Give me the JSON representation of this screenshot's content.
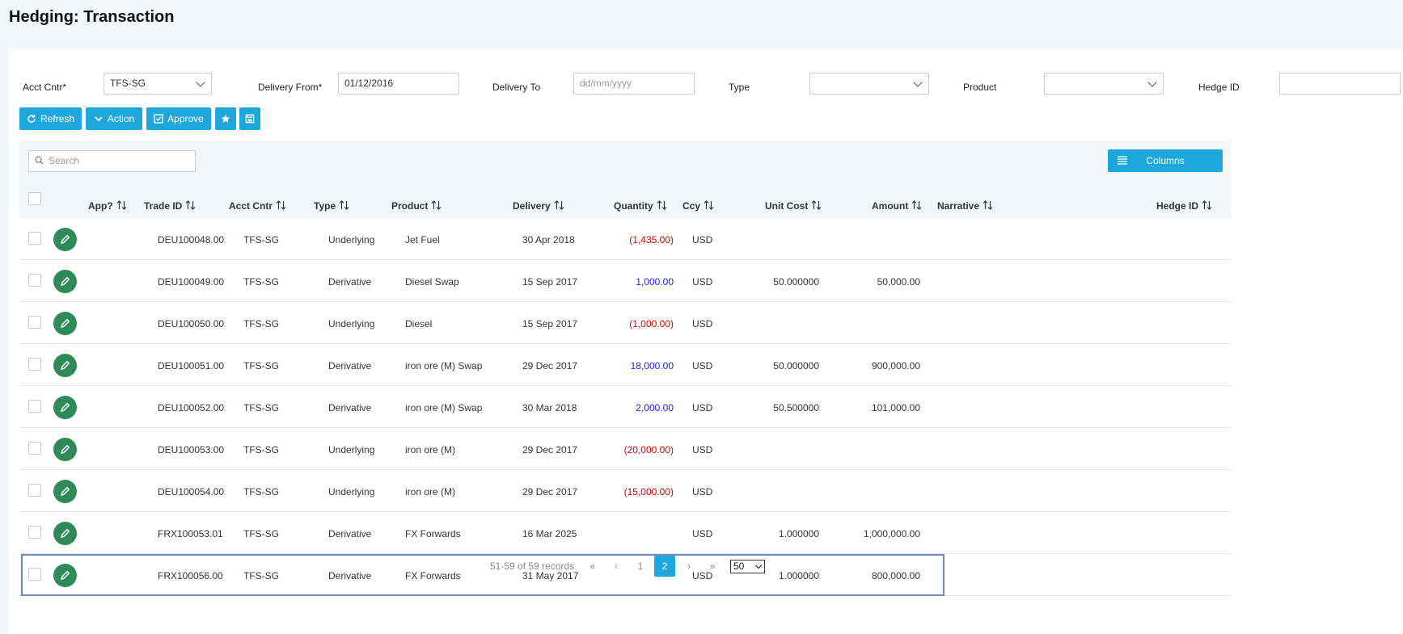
{
  "page": {
    "title": "Hedging: Transaction"
  },
  "filters": {
    "acct_cntr": {
      "label": "Acct Cntr*",
      "value": "TFS-SG"
    },
    "delivery_from": {
      "label": "Delivery From*",
      "value": "01/12/2016"
    },
    "delivery_to": {
      "label": "Delivery To",
      "placeholder": "dd/mm/yyyy"
    },
    "type": {
      "label": "Type",
      "value": ""
    },
    "product": {
      "label": "Product",
      "value": ""
    },
    "hedge_id": {
      "label": "Hedge ID",
      "value": ""
    }
  },
  "toolbar": {
    "refresh": "Refresh",
    "action": "Action",
    "approve": "Approve",
    "star_icon": "star-icon",
    "save_icon": "save-icon"
  },
  "grid": {
    "search_placeholder": "Search",
    "columns_button": "Columns",
    "headers": {
      "app": "App?",
      "trade_id": "Trade ID",
      "acct_cntr": "Acct Cntr",
      "type": "Type",
      "product": "Product",
      "delivery": "Delivery",
      "quantity": "Quantity",
      "ccy": "Ccy",
      "unit_cost": "Unit Cost",
      "amount": "Amount",
      "narrative": "Narrative",
      "hedge_id": "Hedge ID"
    },
    "rows": [
      {
        "trade_id": "DEU100048.00",
        "acct_cntr": "TFS-SG",
        "type": "Underlying",
        "product": "Jet Fuel",
        "delivery": "30 Apr 2018",
        "quantity": "(1,435.00)",
        "qty_sign": "neg",
        "ccy": "USD",
        "unit_cost": "",
        "amount": ""
      },
      {
        "trade_id": "DEU100049.00",
        "acct_cntr": "TFS-SG",
        "type": "Derivative",
        "product": "Diesel Swap",
        "delivery": "15 Sep 2017",
        "quantity": "1,000.00",
        "qty_sign": "pos",
        "ccy": "USD",
        "unit_cost": "50.000000",
        "amount": "50,000.00"
      },
      {
        "trade_id": "DEU100050.00",
        "acct_cntr": "TFS-SG",
        "type": "Underlying",
        "product": "Diesel",
        "delivery": "15 Sep 2017",
        "quantity": "(1,000.00)",
        "qty_sign": "neg",
        "ccy": "USD",
        "unit_cost": "",
        "amount": ""
      },
      {
        "trade_id": "DEU100051.00",
        "acct_cntr": "TFS-SG",
        "type": "Derivative",
        "product": "iron ore (M) Swap",
        "delivery": "29 Dec 2017",
        "quantity": "18,000.00",
        "qty_sign": "pos",
        "ccy": "USD",
        "unit_cost": "50.000000",
        "amount": "900,000.00"
      },
      {
        "trade_id": "DEU100052.00",
        "acct_cntr": "TFS-SG",
        "type": "Derivative",
        "product": "iron ore (M) Swap",
        "delivery": "30 Mar 2018",
        "quantity": "2,000.00",
        "qty_sign": "pos",
        "ccy": "USD",
        "unit_cost": "50.500000",
        "amount": "101,000.00"
      },
      {
        "trade_id": "DEU100053.00",
        "acct_cntr": "TFS-SG",
        "type": "Underlying",
        "product": "iron ore (M)",
        "delivery": "29 Dec 2017",
        "quantity": "(20,000.00)",
        "qty_sign": "neg",
        "ccy": "USD",
        "unit_cost": "",
        "amount": ""
      },
      {
        "trade_id": "DEU100054.00",
        "acct_cntr": "TFS-SG",
        "type": "Underlying",
        "product": "iron ore (M)",
        "delivery": "29 Dec 2017",
        "quantity": "(15,000.00)",
        "qty_sign": "neg",
        "ccy": "USD",
        "unit_cost": "",
        "amount": ""
      },
      {
        "trade_id": "FRX100053.01",
        "acct_cntr": "TFS-SG",
        "type": "Derivative",
        "product": "FX Forwards",
        "delivery": "16 Mar 2025",
        "quantity": "",
        "qty_sign": "",
        "ccy": "USD",
        "unit_cost": "1.000000",
        "amount": "1,000,000.00"
      },
      {
        "trade_id": "FRX100056.00",
        "acct_cntr": "TFS-SG",
        "type": "Derivative",
        "product": "FX Forwards",
        "delivery": "31 May 2017",
        "quantity": "",
        "qty_sign": "",
        "ccy": "USD",
        "unit_cost": "1.000000",
        "amount": "800,000.00",
        "selected": true
      }
    ]
  },
  "pagination": {
    "info": "51-59 of 59 records",
    "first": "«",
    "prev": "‹",
    "page1": "1",
    "page2": "2",
    "next": "›",
    "last": "»",
    "page_size": "50"
  },
  "colors": {
    "accent": "#1ea7da",
    "edit": "#2e8b57",
    "negative": "#e00000",
    "positive": "#1a1aff",
    "selection": "#6a8bb8"
  }
}
